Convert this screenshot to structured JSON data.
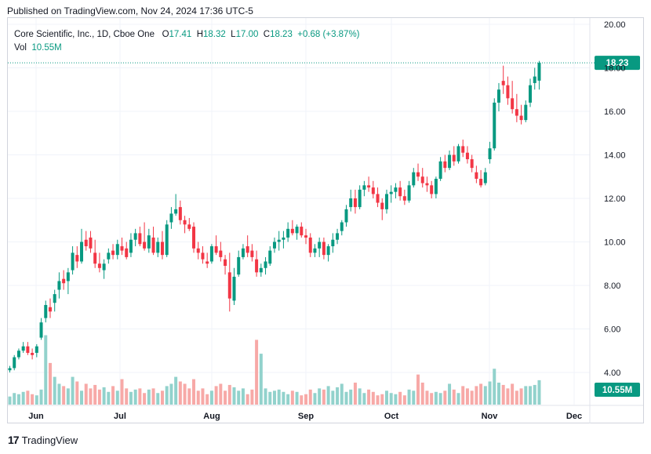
{
  "published": "Published on TradingView.com, Nov 24, 2024 17:36 UTC-5",
  "footer": {
    "logo_text": "TradingView"
  },
  "legend": {
    "symbol": "Core Scientific, Inc., 1D, Cboe One",
    "open_label": "O",
    "open": "17.41",
    "high_label": "H",
    "high": "18.32",
    "low_label": "L",
    "low": "17.00",
    "close_label": "C",
    "close": "18.23",
    "change": "+0.68 (+3.87%)",
    "vol_label": "Vol",
    "vol": "10.55M"
  },
  "colors": {
    "up": "#089981",
    "down": "#f23645",
    "vol_up": "#92d2cc",
    "vol_down": "#f7a9a7"
  },
  "chart_data": {
    "type": "candlestick",
    "x_ticks": [
      "Jun",
      "Jul",
      "Aug",
      "Sep",
      "Oct",
      "Nov",
      "Dec"
    ],
    "y_ticks": [
      "4.00",
      "6.00",
      "8.00",
      "10.00",
      "12.00",
      "14.00",
      "16.00",
      "18.00",
      "20.00"
    ],
    "ylim": [
      3.6,
      20.2
    ],
    "last_price_label": "18.23",
    "last_volume_label": "10.55M",
    "grid": true,
    "candles": [
      [
        4.1,
        4.3,
        4.0,
        4.2,
        3.5
      ],
      [
        4.2,
        4.8,
        4.1,
        4.7,
        5.0
      ],
      [
        4.7,
        5.1,
        4.6,
        5.0,
        4.5
      ],
      [
        5.0,
        5.4,
        4.9,
        5.2,
        5.5
      ],
      [
        5.2,
        5.4,
        4.8,
        4.9,
        6.0
      ],
      [
        4.9,
        5.1,
        4.6,
        4.8,
        4.5
      ],
      [
        4.9,
        5.3,
        4.7,
        5.2,
        4.0
      ],
      [
        5.6,
        6.5,
        5.5,
        6.3,
        6.5
      ],
      [
        6.5,
        7.3,
        6.3,
        7.1,
        30.0
      ],
      [
        7.0,
        7.4,
        6.5,
        6.8,
        18.0
      ],
      [
        7.2,
        7.8,
        6.8,
        7.6,
        12.0
      ],
      [
        7.8,
        8.6,
        7.4,
        8.2,
        9.0
      ],
      [
        8.3,
        8.7,
        7.8,
        8.1,
        8.0
      ],
      [
        8.2,
        8.8,
        7.6,
        8.6,
        7.0
      ],
      [
        8.7,
        9.8,
        8.5,
        9.5,
        12.0
      ],
      [
        9.4,
        9.8,
        8.8,
        9.1,
        10.0
      ],
      [
        9.1,
        10.6,
        9.0,
        10.0,
        6.0
      ],
      [
        10.1,
        10.5,
        9.6,
        9.8,
        9.0
      ],
      [
        10.2,
        10.5,
        9.5,
        9.7,
        7.0
      ],
      [
        9.5,
        10.1,
        8.8,
        9.0,
        8.5
      ],
      [
        9.0,
        9.5,
        8.6,
        8.8,
        6.5
      ],
      [
        8.7,
        9.2,
        8.3,
        9.0,
        7.5
      ],
      [
        9.2,
        9.7,
        9.0,
        9.5,
        5.5
      ],
      [
        9.6,
        9.9,
        9.2,
        9.4,
        8.0
      ],
      [
        9.4,
        10.1,
        9.2,
        9.9,
        6.0
      ],
      [
        9.8,
        10.2,
        9.4,
        9.6,
        11.0
      ],
      [
        9.7,
        10.0,
        9.2,
        9.3,
        7.0
      ],
      [
        9.5,
        10.4,
        9.3,
        10.1,
        5.5
      ],
      [
        10.1,
        10.6,
        9.8,
        10.4,
        6.5
      ],
      [
        10.4,
        10.7,
        9.8,
        9.9,
        7.0
      ],
      [
        10.0,
        10.9,
        9.6,
        9.7,
        5.0
      ],
      [
        9.7,
        10.6,
        9.5,
        10.3,
        6.5
      ],
      [
        10.2,
        10.7,
        9.4,
        9.5,
        7.0
      ],
      [
        9.5,
        10.2,
        9.3,
        10.0,
        5.0
      ],
      [
        10.0,
        10.5,
        9.2,
        9.4,
        6.0
      ],
      [
        9.4,
        11.0,
        9.3,
        10.8,
        8.0
      ],
      [
        10.9,
        11.6,
        10.6,
        11.3,
        9.0
      ],
      [
        11.3,
        12.2,
        11.2,
        11.5,
        12.0
      ],
      [
        11.6,
        11.9,
        10.8,
        11.0,
        10.0
      ],
      [
        11.0,
        11.2,
        10.4,
        10.8,
        9.0
      ],
      [
        10.8,
        11.1,
        10.5,
        10.6,
        7.0
      ],
      [
        10.7,
        10.9,
        9.5,
        9.7,
        11.0
      ],
      [
        9.7,
        10.0,
        9.2,
        9.5,
        6.0
      ],
      [
        9.5,
        9.8,
        9.0,
        9.2,
        7.0
      ],
      [
        9.1,
        9.5,
        8.8,
        9.0,
        4.5
      ],
      [
        9.1,
        9.9,
        9.0,
        9.8,
        6.0
      ],
      [
        9.8,
        10.3,
        9.4,
        9.5,
        8.0
      ],
      [
        9.6,
        10.0,
        9.1,
        9.3,
        9.0
      ],
      [
        9.2,
        9.4,
        8.5,
        8.9,
        6.0
      ],
      [
        8.6,
        9.5,
        6.8,
        7.4,
        8.5
      ],
      [
        7.3,
        8.8,
        7.1,
        8.4,
        7.5
      ],
      [
        8.5,
        9.6,
        8.4,
        9.3,
        6.0
      ],
      [
        9.3,
        9.9,
        9.2,
        9.7,
        7.0
      ],
      [
        9.8,
        10.3,
        9.3,
        9.5,
        4.5
      ],
      [
        9.6,
        9.9,
        9.1,
        9.3,
        6.5
      ],
      [
        9.2,
        9.6,
        8.4,
        8.6,
        28.0
      ],
      [
        8.6,
        9.0,
        8.4,
        8.8,
        22.0
      ],
      [
        8.8,
        9.3,
        8.5,
        9.1,
        7.0
      ],
      [
        9.0,
        9.8,
        8.9,
        9.6,
        5.5
      ],
      [
        9.7,
        10.2,
        9.5,
        10.0,
        6.0
      ],
      [
        10.0,
        10.5,
        9.6,
        10.1,
        6.5
      ],
      [
        10.1,
        10.5,
        9.7,
        10.2,
        5.5
      ],
      [
        10.2,
        10.9,
        10.0,
        10.6,
        4.5
      ],
      [
        10.6,
        11.0,
        10.3,
        10.4,
        6.0
      ],
      [
        10.4,
        10.8,
        10.1,
        10.7,
        5.5
      ],
      [
        10.7,
        10.9,
        10.2,
        10.3,
        4.0
      ],
      [
        10.3,
        10.6,
        9.9,
        10.2,
        4.5
      ],
      [
        10.2,
        10.4,
        9.3,
        9.5,
        6.5
      ],
      [
        9.5,
        9.9,
        9.3,
        9.7,
        5.0
      ],
      [
        9.7,
        10.2,
        9.3,
        10.0,
        7.0
      ],
      [
        10.0,
        10.2,
        9.2,
        9.4,
        6.5
      ],
      [
        9.4,
        9.9,
        9.1,
        9.8,
        8.0
      ],
      [
        9.8,
        10.4,
        9.5,
        10.1,
        6.0
      ],
      [
        10.1,
        10.6,
        9.9,
        10.4,
        7.5
      ],
      [
        10.5,
        11.0,
        10.3,
        10.9,
        9.0
      ],
      [
        10.9,
        11.7,
        10.7,
        11.5,
        5.5
      ],
      [
        11.6,
        12.4,
        11.4,
        12.0,
        6.5
      ],
      [
        12.0,
        12.4,
        11.3,
        11.6,
        9.5
      ],
      [
        11.6,
        12.6,
        11.5,
        12.4,
        7.0
      ],
      [
        12.4,
        12.8,
        12.1,
        12.6,
        5.0
      ],
      [
        12.6,
        13.0,
        12.3,
        12.5,
        6.5
      ],
      [
        12.5,
        12.8,
        12.0,
        12.2,
        5.5
      ],
      [
        12.2,
        12.5,
        11.6,
        11.8,
        4.0
      ],
      [
        11.8,
        12.0,
        11.0,
        11.5,
        4.5
      ],
      [
        11.5,
        12.4,
        11.3,
        12.2,
        6.0
      ],
      [
        12.2,
        12.6,
        11.8,
        12.3,
        5.0
      ],
      [
        12.3,
        12.7,
        12.0,
        12.5,
        4.5
      ],
      [
        12.5,
        12.8,
        11.9,
        12.1,
        5.5
      ],
      [
        12.1,
        12.4,
        11.7,
        11.9,
        4.0
      ],
      [
        11.9,
        12.8,
        11.8,
        12.6,
        6.5
      ],
      [
        12.6,
        13.4,
        12.5,
        13.2,
        6.0
      ],
      [
        13.2,
        13.6,
        12.8,
        13.0,
        13.0
      ],
      [
        13.0,
        13.4,
        12.5,
        12.7,
        9.5
      ],
      [
        12.7,
        13.0,
        12.3,
        12.6,
        6.0
      ],
      [
        12.6,
        12.8,
        12.0,
        12.2,
        5.0
      ],
      [
        12.2,
        13.0,
        12.0,
        12.9,
        5.5
      ],
      [
        12.9,
        13.9,
        12.8,
        13.7,
        5.0
      ],
      [
        13.7,
        14.0,
        13.2,
        13.4,
        6.0
      ],
      [
        13.4,
        14.2,
        13.3,
        14.0,
        9.0
      ],
      [
        14.0,
        14.4,
        13.5,
        13.7,
        6.5
      ],
      [
        13.7,
        14.5,
        13.6,
        14.4,
        5.0
      ],
      [
        14.4,
        14.7,
        13.9,
        14.1,
        8.0
      ],
      [
        14.1,
        14.4,
        13.6,
        13.8,
        7.0
      ],
      [
        13.8,
        14.0,
        13.2,
        13.4,
        6.0
      ],
      [
        13.2,
        13.5,
        12.7,
        12.9,
        8.0
      ],
      [
        12.9,
        13.3,
        12.5,
        12.6,
        9.0
      ],
      [
        12.7,
        13.4,
        12.6,
        13.2,
        8.0
      ],
      [
        13.8,
        14.6,
        13.6,
        14.3,
        10.0
      ],
      [
        14.3,
        16.6,
        14.2,
        16.4,
        15.5
      ],
      [
        16.4,
        17.3,
        16.0,
        17.0,
        9.5
      ],
      [
        17.4,
        18.1,
        16.8,
        17.2,
        8.5
      ],
      [
        17.2,
        17.6,
        16.3,
        16.6,
        7.0
      ],
      [
        16.6,
        17.4,
        15.9,
        16.1,
        9.0
      ],
      [
        16.1,
        16.8,
        15.5,
        15.8,
        6.0
      ],
      [
        15.8,
        16.3,
        15.4,
        15.6,
        7.0
      ],
      [
        15.6,
        16.5,
        15.5,
        16.3,
        8.0
      ],
      [
        16.4,
        17.5,
        16.2,
        17.2,
        8.0
      ],
      [
        17.3,
        18.0,
        17.0,
        17.6,
        8.5
      ],
      [
        17.41,
        18.32,
        17.0,
        18.23,
        10.55
      ]
    ]
  }
}
